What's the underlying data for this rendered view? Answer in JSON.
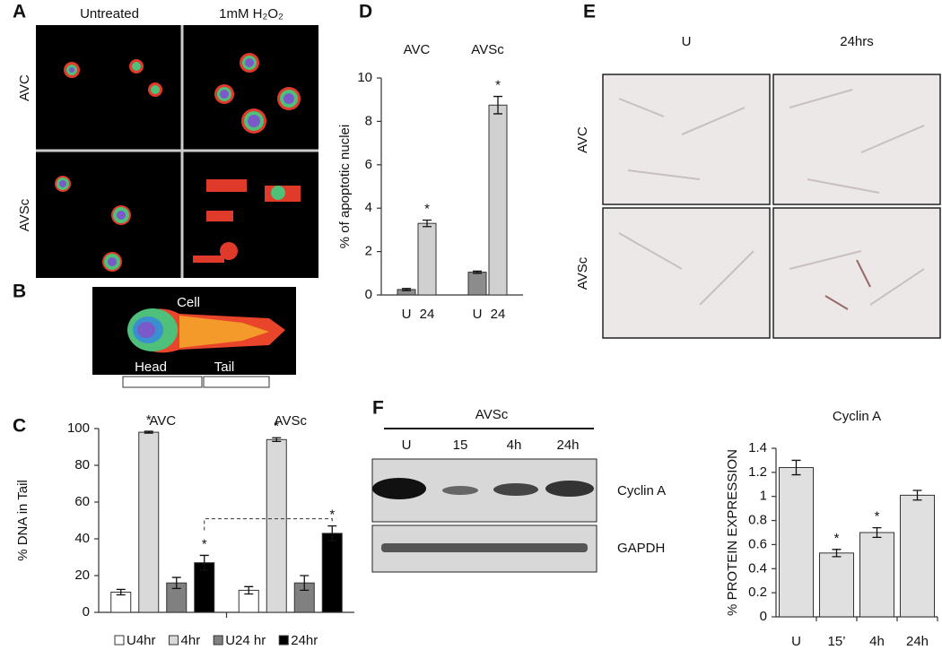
{
  "panels": {
    "A": {
      "letter": "A",
      "columns": [
        "Untreated",
        "1mM H₂O₂"
      ],
      "rows": [
        "AVC",
        "AVSc"
      ]
    },
    "B": {
      "letter": "B",
      "cell": "Cell",
      "head": "Head",
      "tail": "Tail"
    },
    "C": {
      "letter": "C"
    },
    "D": {
      "letter": "D"
    },
    "E": {
      "letter": "E",
      "columns": [
        "U",
        "24hrs"
      ],
      "rows": [
        "AVC",
        "AVSc"
      ]
    },
    "F": {
      "letter": "F",
      "blot_title": "AVSc",
      "lanes": [
        "U",
        "15",
        "4h",
        "24h"
      ],
      "bands": [
        "Cyclin A",
        "GAPDH"
      ]
    }
  },
  "chart_data": [
    {
      "type": "bar",
      "y_label": "% DNA in Tail",
      "categories": [
        "AVC",
        "AVSc"
      ],
      "series": [
        {
          "name": "U4hr",
          "color": "#ffffff",
          "values": [
            11,
            12
          ],
          "errors": [
            1.5,
            2
          ]
        },
        {
          "name": "4hr",
          "color": "#d9d9d9",
          "values": [
            98,
            94
          ],
          "errors": [
            0.5,
            1
          ]
        },
        {
          "name": "U24 hr",
          "color": "#808080",
          "values": [
            16,
            16
          ],
          "errors": [
            3,
            4
          ]
        },
        {
          "name": "24hr",
          "color": "#000000",
          "values": [
            27,
            43
          ],
          "errors": [
            4,
            4
          ]
        }
      ],
      "ylim": [
        0,
        100
      ],
      "yticks": [
        0,
        20,
        40,
        60,
        80,
        100
      ],
      "legend": "bottom",
      "annotations": [
        {
          "text": "*",
          "series": 1,
          "category": 0
        },
        {
          "text": "*",
          "series": 3,
          "category": 0
        },
        {
          "text": "*",
          "series": 1,
          "category": 1
        },
        {
          "text": "*",
          "series": 3,
          "category": 1
        }
      ]
    },
    {
      "type": "bar",
      "y_label": "% of apoptotic nuclei",
      "categories": [
        "AVC",
        "AVSc"
      ],
      "series": [
        {
          "name": "U",
          "color": "#8c8c8c",
          "values": [
            0.25,
            1.05
          ],
          "errors": [
            0.05,
            0.05
          ]
        },
        {
          "name": "24",
          "color": "#d0d0d0",
          "values": [
            3.3,
            8.75
          ],
          "errors": [
            0.15,
            0.4
          ]
        }
      ],
      "ylim": [
        0,
        10
      ],
      "yticks": [
        0,
        2,
        4,
        6,
        8,
        10
      ],
      "annotations": [
        {
          "text": "*",
          "series": 1,
          "category": 0
        },
        {
          "text": "*",
          "series": 1,
          "category": 1
        }
      ]
    },
    {
      "type": "bar",
      "title": "Cyclin A",
      "y_label": "% PROTEIN EXPRESSION",
      "categories": [
        "U",
        "15’",
        "4h",
        "24h"
      ],
      "values": [
        1.24,
        0.53,
        0.7,
        1.01
      ],
      "errors": [
        0.06,
        0.03,
        0.04,
        0.04
      ],
      "color": "#e0e0e0",
      "ylim": [
        0,
        1.4
      ],
      "yticks": [
        0,
        0.2,
        0.4,
        0.6,
        0.8,
        1,
        1.2,
        1.4
      ],
      "annotations": [
        {
          "text": "*",
          "category": 1
        },
        {
          "text": "*",
          "category": 2
        }
      ]
    }
  ]
}
